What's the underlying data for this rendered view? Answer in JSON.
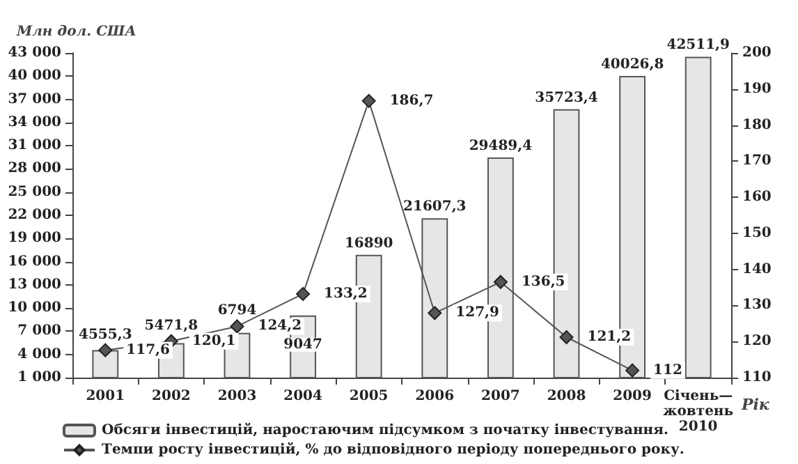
{
  "chart_data": {
    "type": "bar",
    "ylabel": "Млн дол. США",
    "xlabel": "Рік",
    "categories": [
      "2001",
      "2002",
      "2003",
      "2004",
      "2005",
      "2006",
      "2007",
      "2008",
      "2009",
      "Січень— жовтень 2010"
    ],
    "series": [
      {
        "name": "Обсяги інвестицій, наростаючим підсумком з початку інвестування.",
        "color": "#e6e6e6",
        "values": [
          4555.3,
          5471.8,
          6794,
          9047,
          16890,
          21607.3,
          29489.4,
          35723.4,
          40026.8,
          42511.9
        ],
        "value_labels": [
          "4555,3",
          "5471,8",
          "6794",
          "9047",
          "16890",
          "21607,3",
          "29489,4",
          "35723,4",
          "40026,8",
          "42511,9"
        ]
      },
      {
        "name": "Темпи росту інвестицій, % до відповідного періоду попереднього року.",
        "type": "line",
        "axis": "y2",
        "color": "#555555",
        "values": [
          117.6,
          120.1,
          124.2,
          133.2,
          186.7,
          127.9,
          136.5,
          121.2,
          112,
          null
        ],
        "value_labels": [
          "117,6",
          "120,1",
          "124,2",
          "133,2",
          "186,7",
          "127,9",
          "136,5",
          "121,2",
          "112",
          null
        ]
      }
    ],
    "ylim": [
      1000,
      43000
    ],
    "yticks": [
      1000,
      4000,
      7000,
      10000,
      13000,
      16000,
      19000,
      22000,
      25000,
      28000,
      31000,
      34000,
      37000,
      40000,
      43000
    ],
    "y2lim": [
      110,
      200
    ],
    "y2ticks": [
      110,
      120,
      130,
      140,
      150,
      160,
      170,
      180,
      190,
      200
    ],
    "grid": false,
    "legend": "bottom",
    "marker": "diamond",
    "line_style": "solid"
  }
}
